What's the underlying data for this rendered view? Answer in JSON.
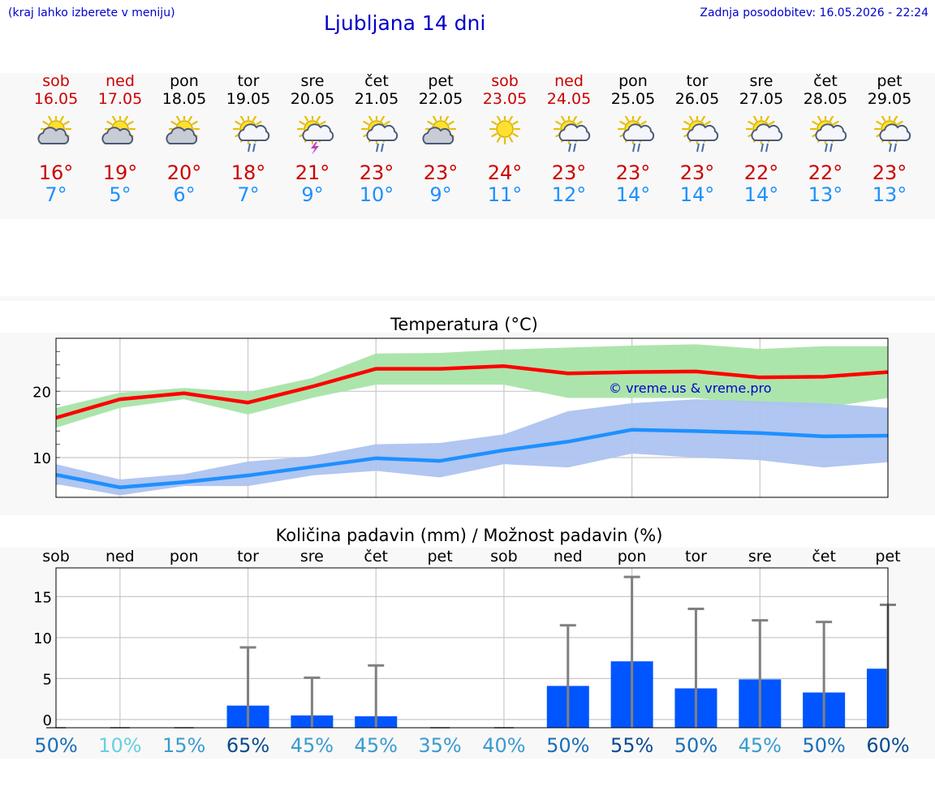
{
  "header": {
    "left_note": "(kraj lahko izberete v meniju)",
    "title": "Ljubljana 14 dni",
    "updated": "Zadnja posodobitev: 16.05.2026 - 22:24"
  },
  "days": [
    {
      "name": "sob",
      "date": "16.05",
      "icon": "sun-cloud-icon",
      "hi": "16°",
      "lo": "7°",
      "weekend": true
    },
    {
      "name": "ned",
      "date": "17.05",
      "icon": "sun-cloud-icon",
      "hi": "19°",
      "lo": "5°",
      "weekend": true
    },
    {
      "name": "pon",
      "date": "18.05",
      "icon": "sun-cloud-icon",
      "hi": "20°",
      "lo": "6°",
      "weekend": false
    },
    {
      "name": "tor",
      "date": "19.05",
      "icon": "sun-rain-icon",
      "hi": "18°",
      "lo": "7°",
      "weekend": false
    },
    {
      "name": "sre",
      "date": "20.05",
      "icon": "sun-storm-icon",
      "hi": "21°",
      "lo": "9°",
      "weekend": false
    },
    {
      "name": "čet",
      "date": "21.05",
      "icon": "sun-rain-icon",
      "hi": "23°",
      "lo": "10°",
      "weekend": false
    },
    {
      "name": "pet",
      "date": "22.05",
      "icon": "sun-cloud-icon",
      "hi": "23°",
      "lo": "9°",
      "weekend": false
    },
    {
      "name": "sob",
      "date": "23.05",
      "icon": "sun-icon",
      "hi": "24°",
      "lo": "11°",
      "weekend": true
    },
    {
      "name": "ned",
      "date": "24.05",
      "icon": "sun-rain-icon",
      "hi": "23°",
      "lo": "12°",
      "weekend": true
    },
    {
      "name": "pon",
      "date": "25.05",
      "icon": "sun-rain-icon",
      "hi": "23°",
      "lo": "14°",
      "weekend": false
    },
    {
      "name": "tor",
      "date": "26.05",
      "icon": "sun-rain-icon",
      "hi": "23°",
      "lo": "14°",
      "weekend": false
    },
    {
      "name": "sre",
      "date": "27.05",
      "icon": "sun-rain-icon",
      "hi": "22°",
      "lo": "14°",
      "weekend": false
    },
    {
      "name": "čet",
      "date": "28.05",
      "icon": "sun-rain-icon",
      "hi": "22°",
      "lo": "13°",
      "weekend": false
    },
    {
      "name": "pet",
      "date": "29.05",
      "icon": "sun-rain-icon",
      "hi": "23°",
      "lo": "13°",
      "weekend": false
    }
  ],
  "chart_data": [
    {
      "type": "line",
      "title": "Temperatura (°C)",
      "watermark": "© vreme.us & vreme.pro",
      "x": [
        "16.05",
        "17.05",
        "18.05",
        "19.05",
        "20.05",
        "21.05",
        "22.05",
        "23.05",
        "24.05",
        "25.05",
        "26.05",
        "27.05",
        "28.05",
        "29.05"
      ],
      "yticks": [
        10,
        20
      ],
      "ylim": [
        4,
        28
      ],
      "series": [
        {
          "key": "max",
          "color": "#ff0000",
          "values": [
            16,
            18.8,
            19.7,
            18.3,
            20.7,
            23.4,
            23.4,
            23.8,
            22.7,
            22.9,
            23.0,
            22.1,
            22.2,
            22.9
          ],
          "band_low": [
            14.5,
            17.5,
            18.8,
            16.5,
            19.0,
            21.0,
            21.0,
            21.0,
            19.0,
            19.0,
            19.0,
            18.0,
            17.5,
            19.0
          ],
          "band_high": [
            17.5,
            19.8,
            20.5,
            19.9,
            22.0,
            25.7,
            25.8,
            26.3,
            26.6,
            26.9,
            27.1,
            26.4,
            26.8,
            26.8
          ],
          "band_color": "#a8e4a8"
        },
        {
          "key": "min",
          "color": "#1e90ff",
          "values": [
            7.4,
            5.5,
            6.3,
            7.3,
            8.6,
            9.9,
            9.5,
            11.1,
            12.4,
            14.2,
            14.0,
            13.7,
            13.2,
            13.3
          ],
          "band_low": [
            6.0,
            4.3,
            5.7,
            5.7,
            7.3,
            8.0,
            7.0,
            9.0,
            8.5,
            10.6,
            10.0,
            9.6,
            8.5,
            9.3
          ],
          "band_high": [
            9.0,
            6.7,
            7.5,
            9.4,
            10.2,
            12.0,
            12.2,
            13.5,
            17.0,
            18.2,
            18.8,
            18.5,
            18.2,
            17.5
          ],
          "band_color": "#adc3f0"
        }
      ]
    },
    {
      "type": "bar",
      "title": "Količina padavin (mm) / Možnost padavin (%)",
      "categories": [
        "sob",
        "ned",
        "pon",
        "tor",
        "sre",
        "čet",
        "pet",
        "sob",
        "ned",
        "pon",
        "tor",
        "sre",
        "čet",
        "pet"
      ],
      "values": [
        0,
        0,
        0,
        1.7,
        0.5,
        0.4,
        0,
        0,
        4.1,
        7.1,
        3.8,
        4.9,
        3.3,
        6.2
      ],
      "max_values": [
        0,
        0,
        0,
        8.8,
        5.1,
        6.6,
        0,
        0,
        11.5,
        17.4,
        13.5,
        12.1,
        11.9,
        14.0
      ],
      "chances": [
        "50%",
        "10%",
        "15%",
        "65%",
        "45%",
        "45%",
        "35%",
        "40%",
        "50%",
        "55%",
        "50%",
        "45%",
        "50%",
        "60%"
      ],
      "chance_colors": [
        "#1a6fb8",
        "#66d0e0",
        "#3a9ad0",
        "#0a4a90",
        "#3a9ad0",
        "#3a9ad0",
        "#3a9ad0",
        "#3a9ad0",
        "#1a6fb8",
        "#0a4a90",
        "#1a6fb8",
        "#3a9ad0",
        "#1a6fb8",
        "#0a4a90"
      ],
      "yticks": [
        0,
        5,
        10,
        15
      ],
      "ylim": [
        -1,
        18.5
      ],
      "bar_color": "#0055ff",
      "error_color": "#808080"
    }
  ]
}
